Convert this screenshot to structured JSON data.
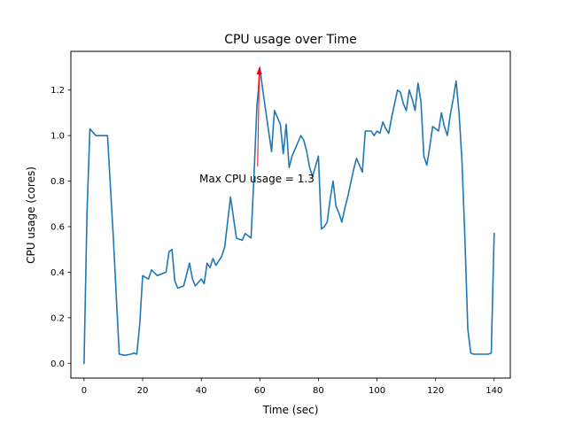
{
  "chart_data": {
    "type": "line",
    "title": "CPU usage over Time",
    "xlabel": "Time (sec)",
    "ylabel": "CPU usage (cores)",
    "xlim": [
      -4.5,
      145.5
    ],
    "ylim": [
      -0.065,
      1.37
    ],
    "xticks": [
      0,
      20,
      40,
      60,
      80,
      100,
      120,
      140
    ],
    "xtick_labels": [
      "0",
      "20",
      "40",
      "60",
      "80",
      "100",
      "120",
      "140"
    ],
    "yticks": [
      0.0,
      0.2,
      0.4,
      0.6,
      0.8,
      1.0,
      1.2
    ],
    "ytick_labels": [
      "0.0",
      "0.2",
      "0.4",
      "0.6",
      "0.8",
      "1.0",
      "1.2"
    ],
    "grid": false,
    "legend": "none",
    "series": [
      {
        "color": "#1f77b4",
        "x": [
          0,
          1,
          2,
          4,
          6,
          8,
          10,
          12,
          14,
          16,
          17,
          18,
          19,
          20,
          22,
          23,
          25,
          28,
          29,
          30,
          31,
          32,
          34,
          35,
          36,
          37,
          38,
          40,
          41,
          42,
          43,
          44,
          45,
          46,
          47,
          48,
          50,
          52,
          54,
          55,
          56,
          57,
          58,
          59,
          59.5,
          60,
          61,
          63,
          64,
          65,
          66,
          67,
          68,
          69,
          70,
          71,
          73,
          74,
          75,
          76,
          77,
          78,
          80,
          81,
          82,
          83,
          84,
          85,
          86,
          87,
          88,
          89,
          90,
          91,
          92,
          93,
          94,
          95,
          96,
          98,
          99,
          100,
          101,
          102,
          103,
          104,
          105,
          107,
          108,
          109,
          110,
          111,
          112,
          113,
          114,
          115,
          116,
          117,
          118,
          119,
          120,
          121,
          122,
          123,
          124,
          125,
          126,
          127,
          128,
          129,
          130,
          131,
          132,
          133,
          134,
          135,
          136,
          137,
          138,
          139,
          140
        ],
        "y": [
          0.0,
          0.66,
          1.03,
          1.0,
          1.0,
          1.0,
          0.55,
          0.04,
          0.035,
          0.04,
          0.045,
          0.04,
          0.17,
          0.385,
          0.37,
          0.41,
          0.385,
          0.4,
          0.49,
          0.5,
          0.36,
          0.33,
          0.34,
          0.39,
          0.44,
          0.37,
          0.34,
          0.37,
          0.35,
          0.44,
          0.42,
          0.46,
          0.43,
          0.45,
          0.47,
          0.51,
          0.73,
          0.55,
          0.54,
          0.57,
          0.56,
          0.55,
          0.82,
          1.13,
          1.2,
          1.3,
          1.2,
          1.02,
          0.93,
          1.11,
          1.08,
          1.05,
          0.92,
          1.05,
          0.86,
          0.91,
          0.97,
          1.0,
          0.98,
          0.93,
          0.86,
          0.82,
          0.91,
          0.59,
          0.6,
          0.62,
          0.72,
          0.8,
          0.69,
          0.66,
          0.62,
          0.68,
          0.73,
          0.79,
          0.85,
          0.9,
          0.87,
          0.84,
          1.02,
          1.02,
          1.0,
          1.02,
          1.01,
          1.06,
          1.03,
          1.01,
          1.08,
          1.2,
          1.19,
          1.14,
          1.11,
          1.2,
          1.16,
          1.11,
          1.23,
          1.15,
          0.91,
          0.87,
          0.95,
          1.04,
          1.03,
          1.02,
          1.1,
          1.04,
          1.0,
          1.09,
          1.16,
          1.24,
          1.1,
          0.89,
          0.55,
          0.15,
          0.045,
          0.04,
          0.04,
          0.04,
          0.04,
          0.04,
          0.04,
          0.045,
          0.57
        ]
      }
    ],
    "annotation": {
      "text": "Max CPU usage = 1.3",
      "color": "#ff0000",
      "point": [
        59.8,
        1.3
      ],
      "text_position": [
        59,
        0.81
      ]
    }
  }
}
